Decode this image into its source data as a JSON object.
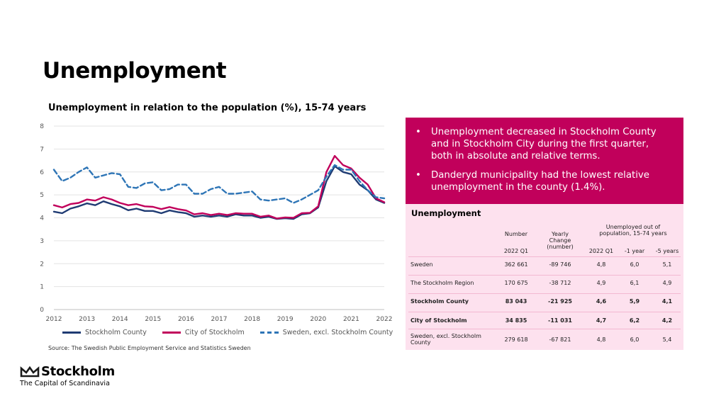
{
  "page_title": "Unemployment",
  "chart_title": "Unemployment in relation to the population (%), 15-74 years",
  "source": "Source: The Swedish Public Employment Service and Statistics Sweden",
  "logo": {
    "name": "Stockholm",
    "tagline": "The Capital of Scandinavia",
    "icon": "crown-icon"
  },
  "callout": {
    "bullets": [
      "Unemployment decreased in Stockholm County and in Stockholm City during the first quarter, both in absolute and relative terms.",
      "Danderyd municipality had the lowest relative unemployment in the county (1.4%)."
    ]
  },
  "colors": {
    "county": "#1f3b73",
    "city": "#c1005b",
    "sweden": "#2e75b6",
    "callout_bg": "#c1005b",
    "table_bg": "#fde1ee"
  },
  "table": {
    "title": "Unemployment",
    "headers": {
      "number": "Number",
      "yearly_change": "Yearly\nChange\n(number)",
      "unemployed_share": "Unemployed out of\npopulation, 15-74 years"
    },
    "subheaders": [
      "2022 Q1",
      "2022 Q1",
      "-1 year",
      "-5 years"
    ],
    "rows": [
      {
        "name": "Sweden",
        "number": "362 661",
        "change": "-89 746",
        "q1": "4,8",
        "y1": "6,0",
        "y5": "5,1",
        "bold": false
      },
      {
        "name": "The Stockholm Region",
        "number": "170 675",
        "change": "-38 712",
        "q1": "4,9",
        "y1": "6,1",
        "y5": "4,9",
        "bold": false
      },
      {
        "name": "Stockholm County",
        "number": "83 043",
        "change": "-21 925",
        "q1": "4,6",
        "y1": "5,9",
        "y5": "4,1",
        "bold": true
      },
      {
        "name": "City of Stockholm",
        "number": "34 835",
        "change": "-11 031",
        "q1": "4,7",
        "y1": "6,2",
        "y5": "4,2",
        "bold": true
      },
      {
        "name": "Sweden, excl. Stockholm County",
        "number": "279 618",
        "change": "-67 821",
        "q1": "4,8",
        "y1": "6,0",
        "y5": "5,4",
        "bold": false
      }
    ]
  },
  "chart_data": {
    "type": "line",
    "title": "Unemployment in relation to the population (%), 15-74 years",
    "xlabel": "",
    "ylabel": "",
    "ylim": [
      0,
      8
    ],
    "yticks": [
      "0",
      "1",
      "2",
      "3",
      "4",
      "5",
      "6",
      "7",
      "8"
    ],
    "xlim": [
      2012,
      2022
    ],
    "xticks": [
      "2012",
      "2013",
      "2014",
      "2015",
      "2016",
      "2017",
      "2018",
      "2019",
      "2020",
      "2021",
      "2022"
    ],
    "grid": true,
    "legend": "bottom",
    "x": [
      2012.0,
      2012.25,
      2012.5,
      2012.75,
      2013.0,
      2013.25,
      2013.5,
      2013.75,
      2014.0,
      2014.25,
      2014.5,
      2014.75,
      2015.0,
      2015.25,
      2015.5,
      2015.75,
      2016.0,
      2016.25,
      2016.5,
      2016.75,
      2017.0,
      2017.25,
      2017.5,
      2017.75,
      2018.0,
      2018.25,
      2018.5,
      2018.75,
      2019.0,
      2019.25,
      2019.5,
      2019.75,
      2020.0,
      2020.25,
      2020.5,
      2020.75,
      2021.0,
      2021.25,
      2021.5,
      2021.75,
      2022.0
    ],
    "series": [
      {
        "name": "Stockholm County",
        "style": "solid",
        "color": "#1f3b73",
        "values": [
          4.27,
          4.2,
          4.4,
          4.5,
          4.63,
          4.55,
          4.72,
          4.6,
          4.5,
          4.33,
          4.4,
          4.3,
          4.3,
          4.2,
          4.32,
          4.25,
          4.2,
          4.05,
          4.1,
          4.05,
          4.1,
          4.05,
          4.15,
          4.1,
          4.1,
          4.0,
          4.05,
          3.95,
          3.98,
          3.95,
          4.15,
          4.2,
          4.45,
          5.6,
          6.25,
          6.0,
          5.9,
          5.45,
          5.2,
          4.8,
          4.65
        ]
      },
      {
        "name": "City of Stockholm",
        "style": "solid",
        "color": "#c1005b",
        "values": [
          4.55,
          4.45,
          4.6,
          4.65,
          4.8,
          4.75,
          4.9,
          4.8,
          4.65,
          4.55,
          4.6,
          4.5,
          4.48,
          4.38,
          4.47,
          4.38,
          4.32,
          4.15,
          4.2,
          4.12,
          4.18,
          4.12,
          4.2,
          4.18,
          4.18,
          4.05,
          4.1,
          3.97,
          4.02,
          4.0,
          4.2,
          4.22,
          4.5,
          6.0,
          6.7,
          6.3,
          6.15,
          5.75,
          5.45,
          4.85,
          4.68
        ]
      },
      {
        "name": "Sweden, excl. Stockholm County",
        "style": "dashed",
        "color": "#2e75b6",
        "values": [
          6.1,
          5.6,
          5.75,
          6.0,
          6.2,
          5.75,
          5.85,
          5.95,
          5.9,
          5.35,
          5.3,
          5.5,
          5.55,
          5.2,
          5.25,
          5.45,
          5.45,
          5.05,
          5.05,
          5.25,
          5.35,
          5.05,
          5.05,
          5.1,
          5.15,
          4.8,
          4.75,
          4.8,
          4.85,
          4.65,
          4.8,
          5.0,
          5.2,
          5.8,
          6.3,
          6.1,
          6.1,
          5.6,
          5.2,
          4.9,
          4.85
        ]
      }
    ]
  }
}
